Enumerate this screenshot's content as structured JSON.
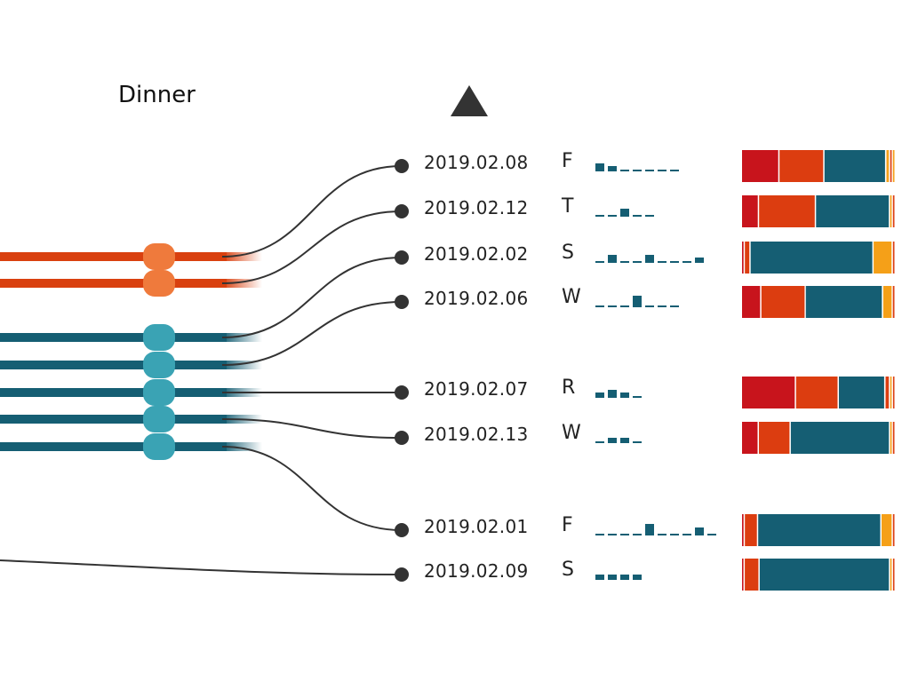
{
  "header": {
    "label": "Dinner"
  },
  "colors": {
    "orange_track": "#d9400f",
    "orange_node": "#ef7a3c",
    "teal_track": "#155e73",
    "teal_node": "#3aa3b4",
    "link": "#333333",
    "spark": "#155e73",
    "seg_red": "#c8141c",
    "seg_orange": "#dc3d10",
    "seg_teal": "#155e73",
    "seg_yellow": "#f5a018"
  },
  "tracks": [
    {
      "color": "orange"
    },
    {
      "color": "orange"
    },
    {
      "color": "teal"
    },
    {
      "color": "teal"
    },
    {
      "color": "teal"
    },
    {
      "color": "teal"
    },
    {
      "color": "teal"
    }
  ],
  "rows": [
    {
      "date": "2019.02.08",
      "day": "F",
      "spark": [
        2,
        1,
        0,
        0,
        0,
        0,
        0
      ],
      "segments": [
        [
          "red",
          40
        ],
        [
          "orange",
          48
        ],
        [
          "teal",
          66
        ],
        [
          "yellow",
          4
        ],
        [
          "orange",
          3
        ],
        [
          "yellow",
          3
        ]
      ]
    },
    {
      "date": "2019.02.12",
      "day": "T",
      "spark": [
        0,
        0,
        2,
        0,
        0
      ],
      "segments": [
        [
          "red",
          18
        ],
        [
          "orange",
          60
        ],
        [
          "teal",
          78
        ],
        [
          "yellow",
          3
        ],
        [
          "orange",
          3
        ]
      ]
    },
    {
      "date": "2019.02.02",
      "day": "S",
      "spark": [
        0,
        2,
        0,
        0,
        2,
        0,
        0,
        0,
        1
      ],
      "segments": [
        [
          "red",
          3
        ],
        [
          "orange",
          6
        ],
        [
          "teal",
          128
        ],
        [
          "yellow",
          20
        ],
        [
          "orange",
          3
        ]
      ]
    },
    {
      "date": "2019.02.06",
      "day": "W",
      "spark": [
        0,
        0,
        0,
        3,
        0,
        0,
        0
      ],
      "segments": [
        [
          "red",
          20
        ],
        [
          "orange",
          46
        ],
        [
          "teal",
          80
        ],
        [
          "yellow",
          10
        ],
        [
          "orange",
          3
        ]
      ]
    },
    {
      "date": "2019.02.07",
      "day": "R",
      "spark": [
        1,
        2,
        1,
        0
      ],
      "segments": [
        [
          "red",
          58
        ],
        [
          "orange",
          46
        ],
        [
          "teal",
          50
        ],
        [
          "orange",
          5
        ],
        [
          "yellow",
          3
        ],
        [
          "orange",
          3
        ]
      ]
    },
    {
      "date": "2019.02.13",
      "day": "W",
      "spark": [
        0,
        1,
        1,
        0
      ],
      "segments": [
        [
          "red",
          18
        ],
        [
          "orange",
          34
        ],
        [
          "teal",
          106
        ],
        [
          "yellow",
          3
        ],
        [
          "orange",
          3
        ]
      ]
    },
    {
      "date": "2019.02.01",
      "day": "F",
      "spark": [
        0,
        0,
        0,
        0,
        3,
        0,
        0,
        0,
        2,
        0
      ],
      "segments": [
        [
          "red",
          3
        ],
        [
          "orange",
          14
        ],
        [
          "teal",
          130
        ],
        [
          "yellow",
          12
        ],
        [
          "orange",
          3
        ]
      ]
    },
    {
      "date": "2019.02.09",
      "day": "S",
      "spark": [
        1,
        1,
        1,
        1
      ],
      "segments": [
        [
          "red",
          3
        ],
        [
          "orange",
          16
        ],
        [
          "teal",
          140
        ],
        [
          "yellow",
          3
        ],
        [
          "orange",
          3
        ]
      ]
    }
  ]
}
